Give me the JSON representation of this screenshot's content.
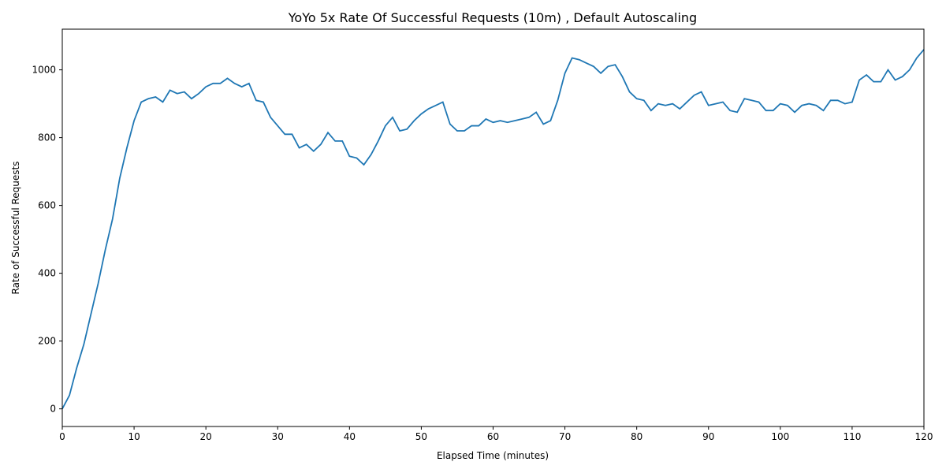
{
  "chart_data": {
    "type": "line",
    "title": "YoYo 5x Rate Of Successful Requests (10m) , Default Autoscaling",
    "x_label": "Elapsed Time (minutes)",
    "y_label": "Rate of Successful Requests",
    "x": [
      0,
      1,
      2,
      3,
      4,
      5,
      6,
      7,
      8,
      9,
      10,
      11,
      12,
      13,
      14,
      15,
      16,
      17,
      18,
      19,
      20,
      21,
      22,
      23,
      24,
      25,
      26,
      27,
      28,
      29,
      30,
      31,
      32,
      33,
      34,
      35,
      36,
      37,
      38,
      39,
      40,
      41,
      42,
      43,
      44,
      45,
      46,
      47,
      48,
      49,
      50,
      51,
      52,
      53,
      54,
      55,
      56,
      57,
      58,
      59,
      60,
      61,
      62,
      63,
      64,
      65,
      66,
      67,
      68,
      69,
      70,
      71,
      72,
      73,
      74,
      75,
      76,
      77,
      78,
      79,
      80,
      81,
      82,
      83,
      84,
      85,
      86,
      87,
      88,
      89,
      90,
      91,
      92,
      93,
      94,
      95,
      96,
      97,
      98,
      99,
      100,
      101,
      102,
      103,
      104,
      105,
      106,
      107,
      108,
      109,
      110,
      111,
      112,
      113,
      114,
      115,
      116,
      117,
      118,
      119,
      120
    ],
    "series": [
      {
        "color": "#1f77b4",
        "values": [
          0,
          40,
          120,
          190,
          280,
          370,
          470,
          560,
          680,
          770,
          850,
          905,
          915,
          920,
          905,
          940,
          930,
          935,
          915,
          930,
          950,
          960,
          960,
          975,
          960,
          950,
          960,
          910,
          905,
          860,
          835,
          810,
          810,
          770,
          780,
          760,
          780,
          815,
          790,
          790,
          745,
          740,
          720,
          750,
          790,
          835,
          860,
          820,
          825,
          850,
          870,
          885,
          895,
          905,
          840,
          820,
          820,
          835,
          835,
          855,
          845,
          850,
          845,
          850,
          855,
          860,
          875,
          840,
          850,
          910,
          990,
          1035,
          1030,
          1020,
          1010,
          990,
          1010,
          1015,
          980,
          935,
          915,
          910,
          880,
          900,
          895,
          900,
          885,
          905,
          925,
          935,
          895,
          900,
          905,
          880,
          875,
          915,
          910,
          905,
          880,
          880,
          900,
          895,
          875,
          895,
          900,
          895,
          880,
          910,
          910,
          900,
          905,
          970,
          985,
          965,
          965,
          1000,
          970,
          980,
          1000,
          1035,
          1060
        ]
      }
    ],
    "xlim": [
      0,
      120
    ],
    "ylim": [
      -52,
      1120
    ],
    "xticks": [
      0,
      10,
      20,
      30,
      40,
      50,
      60,
      70,
      80,
      90,
      100,
      110,
      120
    ],
    "yticks": [
      0,
      200,
      400,
      600,
      800,
      1000
    ]
  }
}
